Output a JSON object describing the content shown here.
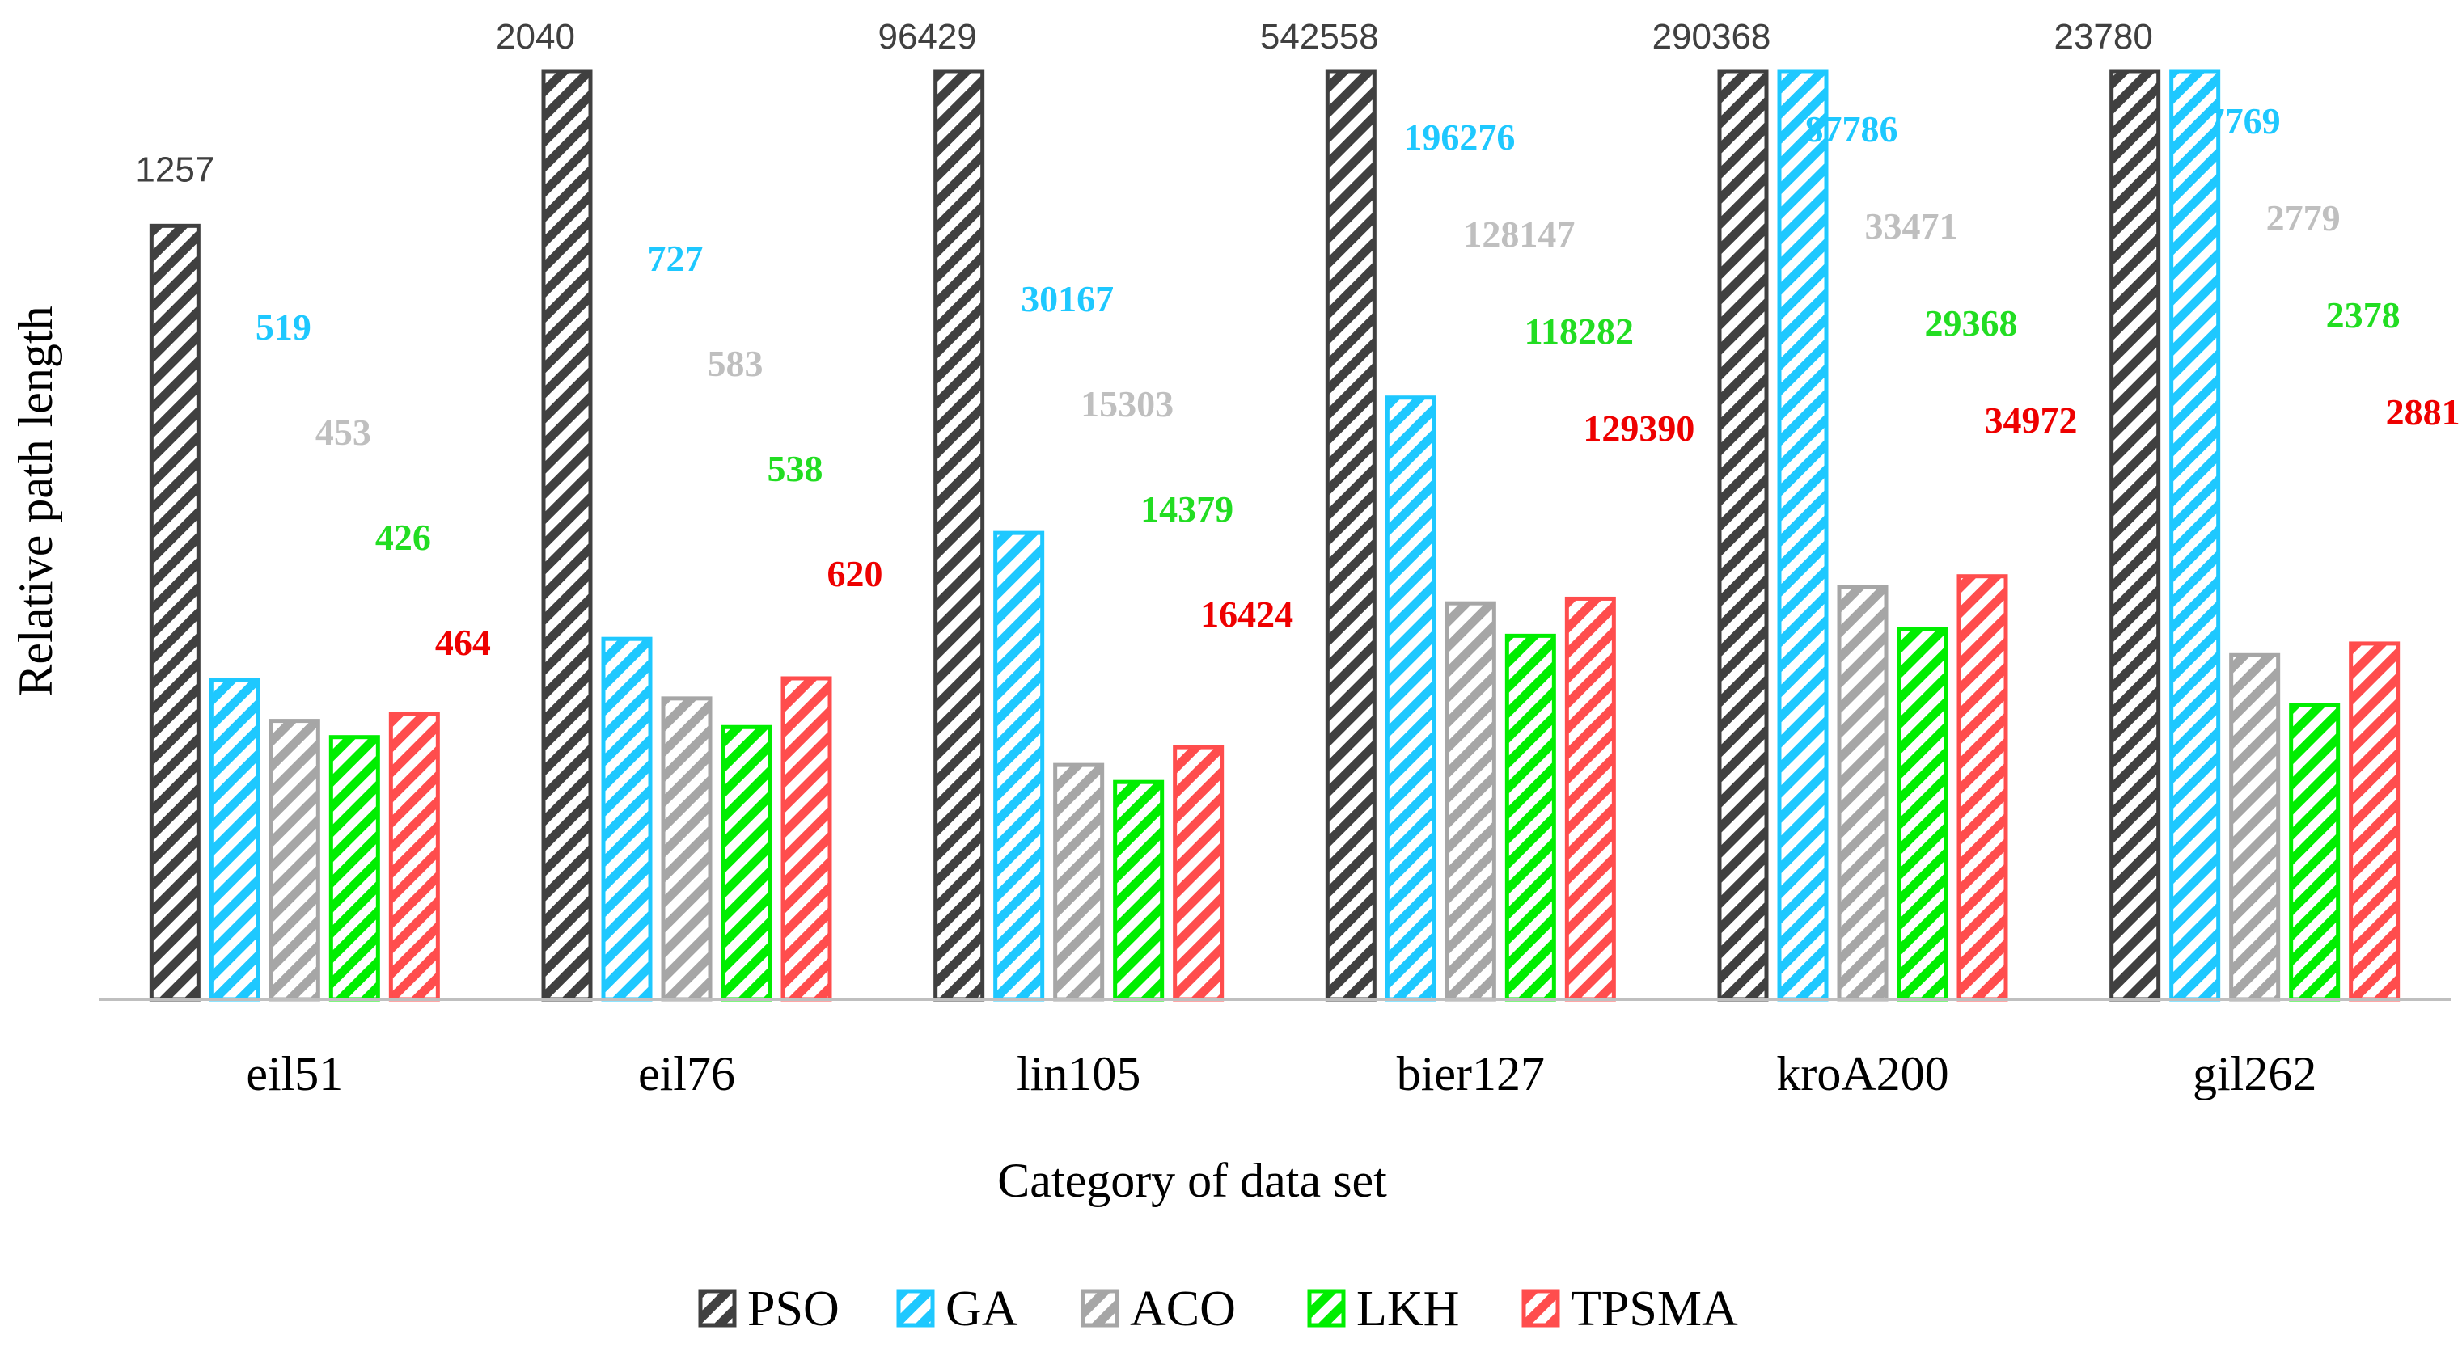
{
  "chart_data": {
    "type": "bar",
    "title": "",
    "xlabel": "Category of data set",
    "ylabel": "Relative path length",
    "categories": [
      "eil51",
      "eil76",
      "lin105",
      "bier127",
      "kroA200",
      "gil262"
    ],
    "series": [
      {
        "name": "PSO",
        "color": "#404040",
        "label_color": "#404040",
        "values": [
          1257,
          2040,
          96429,
          542558,
          290368,
          23780
        ]
      },
      {
        "name": "GA",
        "color": "#1ec8ff",
        "label_color": "#1ec8ff",
        "values": [
          519,
          727,
          30167,
          196276,
          87786,
          7769
        ]
      },
      {
        "name": "ACO",
        "color": "#a6a6a6",
        "label_color": "#bfbfbf",
        "values": [
          453,
          583,
          15303,
          128147,
          33471,
          2779
        ]
      },
      {
        "name": "LKH",
        "color": "#00ee00",
        "label_color": "#22dd22",
        "values": [
          426,
          538,
          14379,
          118282,
          29368,
          2378
        ]
      },
      {
        "name": "TPSMA",
        "color": "#ff4d4d",
        "label_color": "#ee0000",
        "values": [
          464,
          620,
          16424,
          129390,
          34972,
          2881
        ]
      }
    ],
    "relative_heights": [
      [
        1.0,
        0.413,
        0.36,
        0.339,
        0.369
      ],
      [
        1.2,
        0.466,
        0.389,
        0.352,
        0.415
      ],
      [
        1.2,
        0.603,
        0.303,
        0.281,
        0.326
      ],
      [
        1.2,
        0.778,
        0.512,
        0.47,
        0.518
      ],
      [
        1.2,
        1.2,
        0.533,
        0.479,
        0.547
      ],
      [
        1.2,
        1.2,
        0.445,
        0.38,
        0.46
      ]
    ],
    "ylim": [
      0,
      1.2
    ],
    "grid": false,
    "legend_position": "bottom"
  }
}
